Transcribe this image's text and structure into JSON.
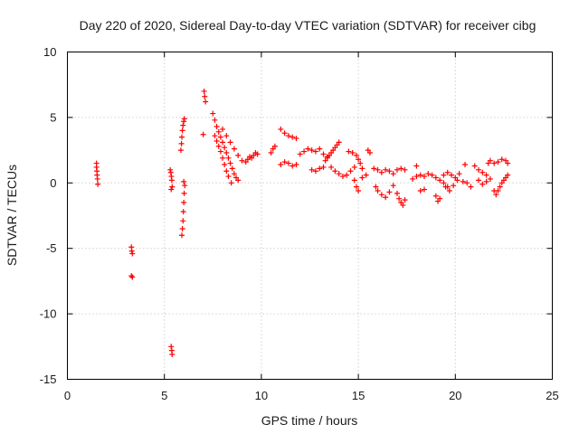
{
  "chart_data": {
    "type": "scatter",
    "title": "Day 220 of 2020, Sidereal Day-to-day VTEC variation (SDTVAR) for receiver cibg",
    "xlabel": "GPS time / hours",
    "ylabel": "SDTVAR / TECUs",
    "xlim": [
      0,
      25
    ],
    "ylim": [
      -15,
      10
    ],
    "xticks": [
      "0",
      "5",
      "10",
      "15",
      "20",
      "25"
    ],
    "yticks": [
      "10",
      "5",
      "0",
      "-5",
      "-10",
      "-15"
    ],
    "xtick_values": [
      0,
      5,
      10,
      15,
      20,
      25
    ],
    "ytick_values": [
      10,
      5,
      0,
      -5,
      -10,
      -15
    ],
    "grid": true,
    "marker": "+",
    "color": "#ff0000",
    "series": [
      {
        "name": "SDTVAR",
        "points": [
          [
            1.5,
            1.5
          ],
          [
            1.5,
            1.2
          ],
          [
            1.52,
            0.9
          ],
          [
            1.53,
            0.6
          ],
          [
            1.55,
            0.3
          ],
          [
            1.57,
            -0.1
          ],
          [
            3.3,
            -4.9
          ],
          [
            3.32,
            -5.2
          ],
          [
            3.35,
            -5.4
          ],
          [
            3.3,
            -7.1
          ],
          [
            3.35,
            -7.2
          ],
          [
            5.35,
            -12.5
          ],
          [
            5.38,
            -12.8
          ],
          [
            5.4,
            -13.1
          ],
          [
            5.3,
            1.0
          ],
          [
            5.33,
            0.8
          ],
          [
            5.36,
            0.5
          ],
          [
            5.38,
            0.2
          ],
          [
            5.35,
            -0.5
          ],
          [
            5.4,
            -0.3
          ],
          [
            5.85,
            2.5
          ],
          [
            5.88,
            3.0
          ],
          [
            5.9,
            3.5
          ],
          [
            5.93,
            4.0
          ],
          [
            5.96,
            4.4
          ],
          [
            6.0,
            4.7
          ],
          [
            6.03,
            4.9
          ],
          [
            6.0,
            0.1
          ],
          [
            6.05,
            -0.2
          ],
          [
            6.02,
            -0.8
          ],
          [
            6.0,
            -1.5
          ],
          [
            5.98,
            -2.2
          ],
          [
            5.96,
            -2.9
          ],
          [
            5.93,
            -3.5
          ],
          [
            5.9,
            -4.0
          ],
          [
            7.05,
            7.0
          ],
          [
            7.08,
            6.6
          ],
          [
            7.12,
            6.2
          ],
          [
            7.0,
            3.7
          ],
          [
            7.5,
            5.3
          ],
          [
            7.6,
            4.8
          ],
          [
            7.7,
            4.3
          ],
          [
            7.8,
            3.9
          ],
          [
            7.9,
            3.5
          ],
          [
            8.0,
            3.1
          ],
          [
            8.1,
            2.7
          ],
          [
            8.2,
            2.3
          ],
          [
            8.3,
            1.9
          ],
          [
            8.4,
            1.5
          ],
          [
            8.5,
            1.1
          ],
          [
            8.6,
            0.7
          ],
          [
            8.7,
            0.4
          ],
          [
            8.8,
            0.2
          ],
          [
            8.45,
            0.0
          ],
          [
            7.6,
            3.6
          ],
          [
            7.7,
            3.2
          ],
          [
            7.8,
            2.8
          ],
          [
            7.9,
            2.4
          ],
          [
            8.0,
            1.9
          ],
          [
            8.1,
            1.4
          ],
          [
            8.2,
            0.9
          ],
          [
            8.3,
            0.5
          ],
          [
            8.0,
            4.1
          ],
          [
            8.2,
            3.6
          ],
          [
            8.4,
            3.1
          ],
          [
            8.6,
            2.6
          ],
          [
            8.8,
            2.1
          ],
          [
            9.0,
            1.7
          ],
          [
            9.2,
            1.6
          ],
          [
            9.3,
            1.8
          ],
          [
            9.4,
            2.0
          ],
          [
            9.5,
            1.9
          ],
          [
            9.6,
            2.1
          ],
          [
            9.7,
            2.3
          ],
          [
            9.8,
            2.2
          ],
          [
            10.5,
            2.3
          ],
          [
            10.6,
            2.6
          ],
          [
            10.7,
            2.8
          ],
          [
            11.0,
            4.1
          ],
          [
            11.2,
            3.8
          ],
          [
            11.4,
            3.6
          ],
          [
            11.6,
            3.5
          ],
          [
            11.8,
            3.4
          ],
          [
            11.0,
            1.4
          ],
          [
            11.2,
            1.6
          ],
          [
            11.4,
            1.5
          ],
          [
            11.6,
            1.3
          ],
          [
            11.8,
            1.4
          ],
          [
            12.0,
            2.2
          ],
          [
            12.2,
            2.4
          ],
          [
            12.4,
            2.6
          ],
          [
            12.6,
            2.5
          ],
          [
            12.6,
            1.0
          ],
          [
            12.8,
            0.9
          ],
          [
            13.0,
            1.1
          ],
          [
            13.2,
            1.2
          ],
          [
            12.8,
            2.4
          ],
          [
            13.0,
            2.6
          ],
          [
            13.2,
            2.2
          ],
          [
            13.4,
            2.0
          ],
          [
            13.3,
            1.7
          ],
          [
            13.4,
            1.9
          ],
          [
            13.5,
            2.1
          ],
          [
            13.6,
            2.3
          ],
          [
            13.7,
            2.5
          ],
          [
            13.8,
            2.7
          ],
          [
            13.9,
            2.9
          ],
          [
            14.0,
            3.1
          ],
          [
            13.6,
            1.2
          ],
          [
            13.8,
            0.9
          ],
          [
            14.0,
            0.7
          ],
          [
            14.2,
            0.5
          ],
          [
            14.4,
            0.6
          ],
          [
            14.6,
            0.9
          ],
          [
            14.8,
            1.2
          ],
          [
            14.5,
            2.4
          ],
          [
            14.7,
            2.3
          ],
          [
            14.9,
            2.1
          ],
          [
            15.0,
            1.8
          ],
          [
            15.1,
            1.5
          ],
          [
            15.2,
            1.1
          ],
          [
            14.8,
            0.2
          ],
          [
            14.9,
            -0.3
          ],
          [
            15.0,
            -0.6
          ],
          [
            15.2,
            0.4
          ],
          [
            15.4,
            0.6
          ],
          [
            15.5,
            2.5
          ],
          [
            15.6,
            2.3
          ],
          [
            15.8,
            1.1
          ],
          [
            16.0,
            1.0
          ],
          [
            16.2,
            0.8
          ],
          [
            16.4,
            1.0
          ],
          [
            16.6,
            0.9
          ],
          [
            16.8,
            0.7
          ],
          [
            15.9,
            -0.3
          ],
          [
            16.0,
            -0.6
          ],
          [
            16.2,
            -0.9
          ],
          [
            16.4,
            -1.1
          ],
          [
            16.6,
            -0.7
          ],
          [
            16.8,
            -0.2
          ],
          [
            17.0,
            -0.8
          ],
          [
            17.1,
            -1.2
          ],
          [
            17.2,
            -1.5
          ],
          [
            17.3,
            -1.7
          ],
          [
            17.4,
            -1.3
          ],
          [
            17.0,
            1.0
          ],
          [
            17.2,
            1.1
          ],
          [
            17.4,
            1.0
          ],
          [
            17.8,
            0.3
          ],
          [
            18.0,
            0.5
          ],
          [
            18.2,
            0.6
          ],
          [
            18.4,
            0.5
          ],
          [
            18.6,
            0.7
          ],
          [
            18.0,
            1.3
          ],
          [
            18.2,
            -0.6
          ],
          [
            18.4,
            -0.5
          ],
          [
            18.8,
            0.6
          ],
          [
            19.0,
            0.4
          ],
          [
            19.2,
            0.2
          ],
          [
            19.4,
            0.0
          ],
          [
            19.6,
            -0.3
          ],
          [
            19.0,
            -1.0
          ],
          [
            19.1,
            -1.4
          ],
          [
            19.2,
            -1.2
          ],
          [
            19.4,
            0.6
          ],
          [
            19.6,
            0.8
          ],
          [
            19.8,
            0.6
          ],
          [
            20.0,
            0.4
          ],
          [
            20.1,
            0.2
          ],
          [
            20.2,
            0.7
          ],
          [
            19.5,
            -0.3
          ],
          [
            19.7,
            -0.6
          ],
          [
            19.9,
            -0.2
          ],
          [
            20.4,
            0.1
          ],
          [
            20.6,
            0.0
          ],
          [
            20.8,
            -0.3
          ],
          [
            20.5,
            1.4
          ],
          [
            21.0,
            1.3
          ],
          [
            21.2,
            1.0
          ],
          [
            21.4,
            0.8
          ],
          [
            21.6,
            0.6
          ],
          [
            21.2,
            0.2
          ],
          [
            21.4,
            -0.1
          ],
          [
            21.6,
            0.1
          ],
          [
            21.8,
            0.3
          ],
          [
            21.7,
            1.5
          ],
          [
            21.8,
            1.7
          ],
          [
            22.0,
            1.5
          ],
          [
            22.2,
            1.6
          ],
          [
            22.4,
            1.8
          ],
          [
            22.6,
            1.7
          ],
          [
            22.7,
            1.5
          ],
          [
            22.0,
            -0.6
          ],
          [
            22.1,
            -0.9
          ],
          [
            22.2,
            -0.6
          ],
          [
            22.3,
            -0.3
          ],
          [
            22.4,
            0.0
          ],
          [
            22.5,
            0.2
          ],
          [
            22.6,
            0.4
          ],
          [
            22.7,
            0.6
          ]
        ]
      }
    ]
  }
}
